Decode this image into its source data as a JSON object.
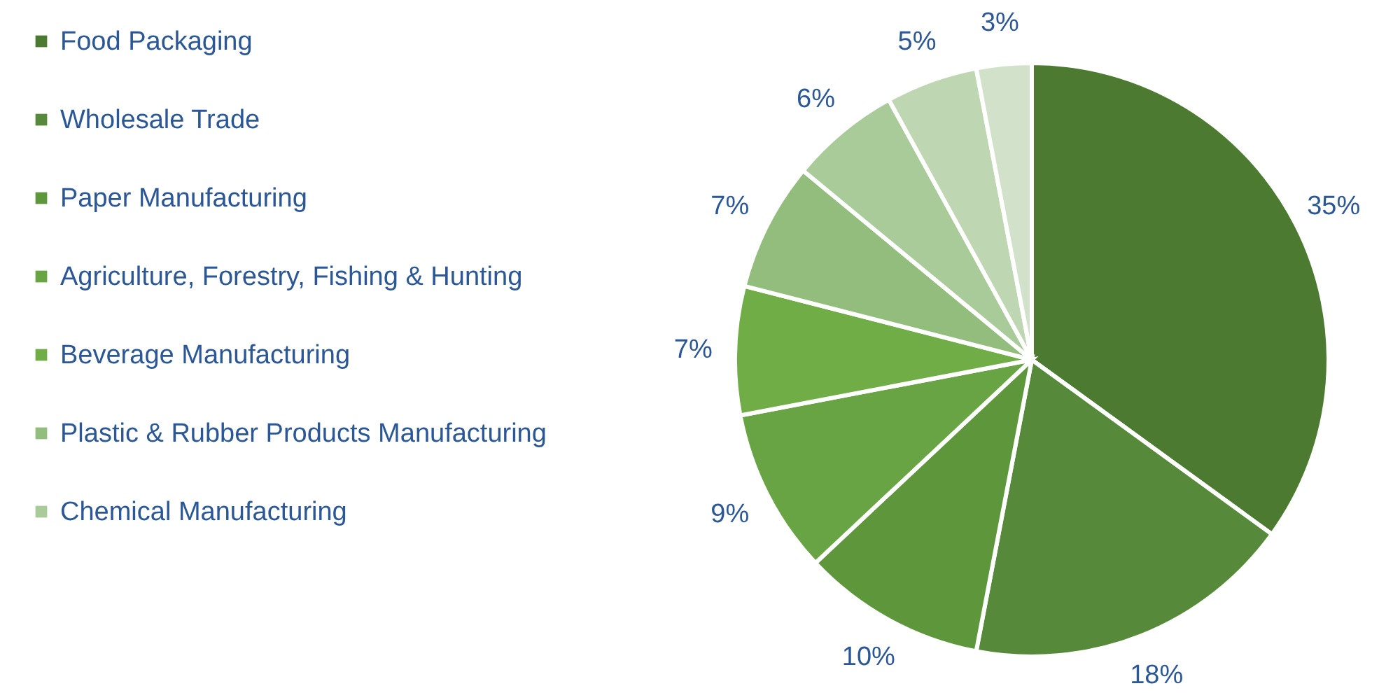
{
  "chart_data": {
    "type": "pie",
    "categories": [
      "Food Packaging",
      "Wholesale Trade",
      "Paper Manufacturing",
      "Agriculture, Forestry, Fishing & Hunting",
      "Beverage Manufacturing",
      "Plastic & Rubber Products Manufacturing",
      "Chemical Manufacturing",
      null,
      null
    ],
    "values": [
      35,
      18,
      10,
      9,
      7,
      7,
      6,
      5,
      3
    ],
    "value_labels": [
      "35%",
      "18%",
      "10%",
      "9%",
      "7%",
      "7%",
      "6%",
      "5%",
      "3%"
    ],
    "colors": [
      "#4d7a31",
      "#568a3a",
      "#5e963c",
      "#68a444",
      "#70ad47",
      "#93bd7d",
      "#a9ca99",
      "#bfd6b3",
      "#d2e1ca"
    ],
    "legend": "left"
  }
}
